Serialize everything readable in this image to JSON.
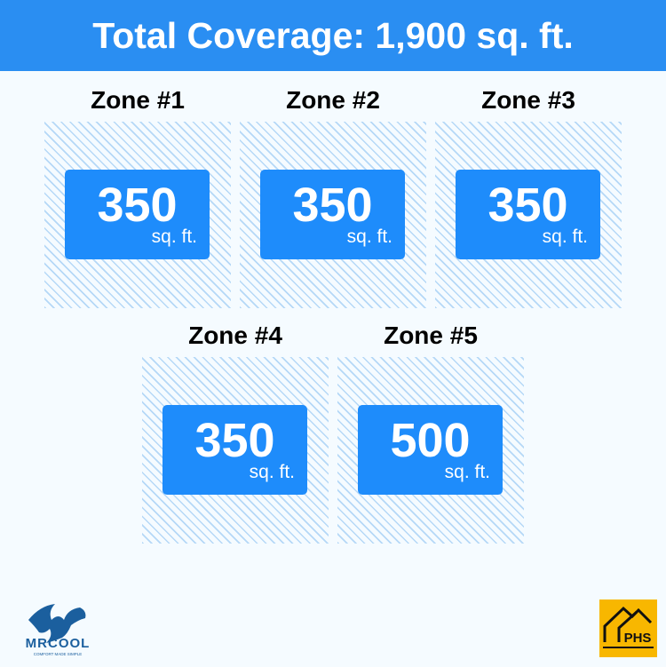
{
  "header": {
    "title": "Total Coverage: 1,900 sq. ft."
  },
  "zones": [
    {
      "title": "Zone #1",
      "value": "350",
      "unit": "sq. ft."
    },
    {
      "title": "Zone #2",
      "value": "350",
      "unit": "sq. ft."
    },
    {
      "title": "Zone #3",
      "value": "350",
      "unit": "sq. ft."
    },
    {
      "title": "Zone #4",
      "value": "350",
      "unit": "sq. ft."
    },
    {
      "title": "Zone #5",
      "value": "500",
      "unit": "sq. ft."
    }
  ],
  "logos": {
    "left": {
      "name": "MRCOOL",
      "tagline": "COMFORT MADE SIMPLE"
    },
    "right": {
      "name": "PHS"
    }
  },
  "colors": {
    "accent": "#2a8ef2",
    "card": "#1e8cfb",
    "hatch": "#b5d8f7",
    "phs": "#f8b700",
    "mrcool": "#1b5f9e"
  }
}
